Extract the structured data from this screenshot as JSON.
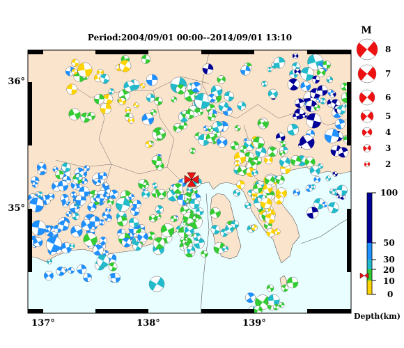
{
  "title": "Period:2004/09/01 00:00--2014/09/01 13:10",
  "lon_ticks": [
    "137°",
    "138°",
    "139°"
  ],
  "lat_ticks": [
    "36°",
    "35°"
  ],
  "magnitude_legend": {
    "header": "M",
    "sizes": [
      "8",
      "7",
      "6",
      "5",
      "4",
      "3",
      "2"
    ]
  },
  "depth_legend": {
    "ticks": [
      "100",
      "50",
      "30",
      "20",
      "10",
      "0"
    ],
    "label": "Depth(km)",
    "colors": [
      "#ffd400",
      "#33cc33",
      "#22bbcc",
      "#1e90ff",
      "#000099"
    ]
  },
  "colors": {
    "land": "#fbe4cc",
    "sea": "#e8feff",
    "mechanism_red": "#ee1111"
  },
  "icons": [
    "red-bowtie-epicenter-icon",
    "red-bowtie-marker-icon",
    "beachball-icon"
  ]
}
